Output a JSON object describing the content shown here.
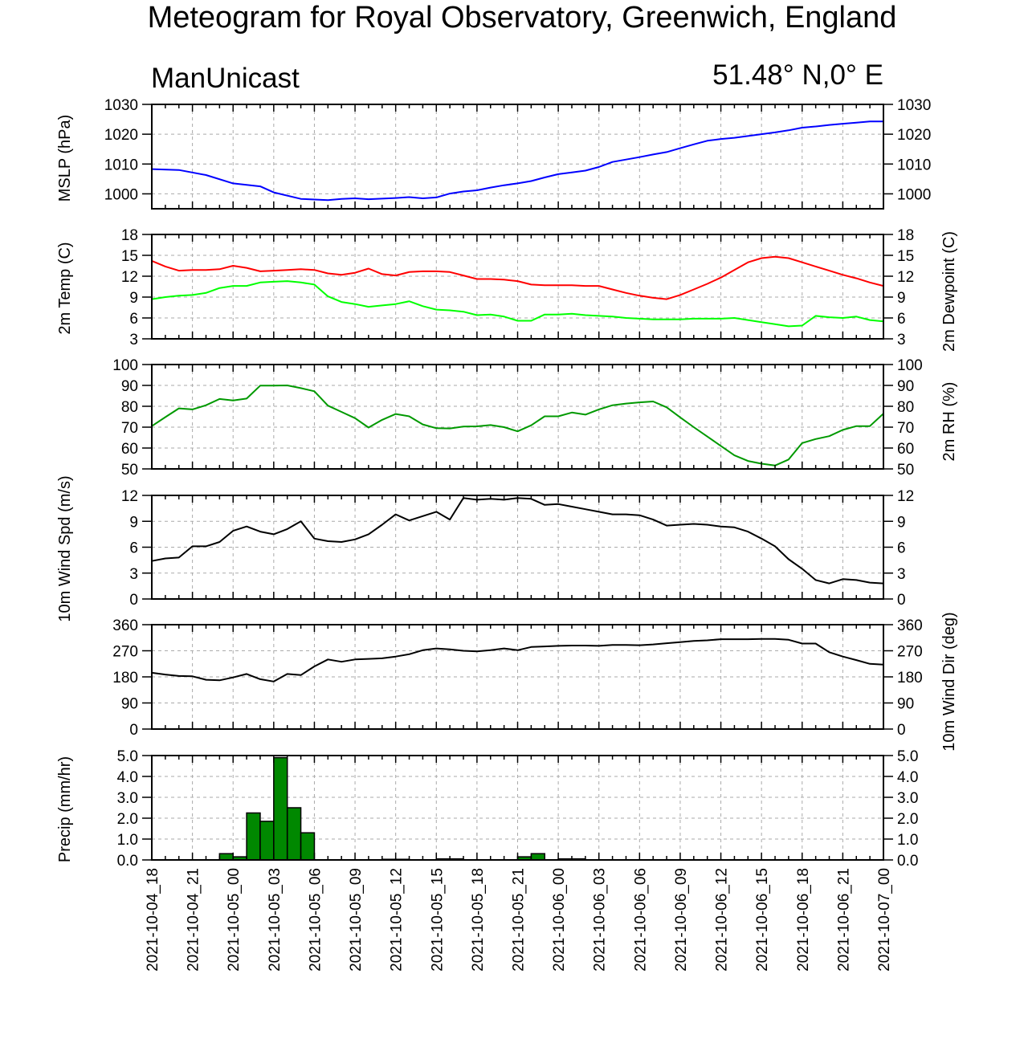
{
  "title": "Meteogram for Royal Observatory, Greenwich, England",
  "model": "ManUnicast",
  "location": "51.48° N,0° E",
  "time_labels": [
    "2021-10-04_18",
    "2021-10-04_21",
    "2021-10-05_00",
    "2021-10-05_03",
    "2021-10-05_06",
    "2021-10-05_09",
    "2021-10-05_12",
    "2021-10-05_15",
    "2021-10-05_18",
    "2021-10-05_21",
    "2021-10-06_00",
    "2021-10-06_03",
    "2021-10-06_06",
    "2021-10-06_09",
    "2021-10-06_12",
    "2021-10-06_15",
    "2021-10-06_18",
    "2021-10-06_21",
    "2021-10-07_00"
  ],
  "chart_data": [
    {
      "type": "line",
      "ylabel": "MSLP (hPa)",
      "ylim": [
        995,
        1030
      ],
      "yticks": [
        1000,
        1010,
        1020,
        1030
      ],
      "grid": true,
      "x_hours": [
        0,
        2,
        4,
        6,
        8,
        9,
        11,
        13,
        14,
        15,
        16,
        17,
        18,
        19,
        20,
        21,
        22,
        23,
        24,
        25,
        26,
        27,
        28,
        29,
        30,
        31,
        32,
        33,
        34,
        35,
        36,
        37,
        38,
        39,
        40,
        41,
        42,
        43,
        44,
        45,
        46,
        47,
        48,
        49,
        50,
        51,
        52,
        53,
        54
      ],
      "series": [
        {
          "color": "#0000ff",
          "values": [
            1008.3,
            1008,
            1006.3,
            1003.5,
            1002.5,
            1000.5,
            998.3,
            997.9,
            998.3,
            998.5,
            998.2,
            998.4,
            998.6,
            998.9,
            998.5,
            998.8,
            1000.1,
            1000.8,
            1001.2,
            1002.1,
            1002.9,
            1003.5,
            1004.3,
            1005.5,
            1006.6,
            1007.2,
            1007.8,
            1009,
            1010.7,
            1011.5,
            1012.3,
            1013.2,
            1014,
            1015.3,
            1016.6,
            1017.8,
            1018.4,
            1018.8,
            1019.4,
            1020,
            1020.6,
            1021.3,
            1022.2,
            1022.6,
            1023.1,
            1023.5,
            1023.9,
            1024.3,
            1024.3
          ]
        }
      ]
    },
    {
      "type": "line",
      "ylabel": "2m Temp (C)",
      "ylabel_right": "2m Dewpoint (C)",
      "ylim": [
        3,
        18
      ],
      "yticks": [
        3,
        6,
        9,
        12,
        15,
        18
      ],
      "grid": true,
      "x_hours": [
        0,
        1,
        2,
        3,
        4,
        5,
        6,
        7,
        8,
        9,
        10,
        11,
        12,
        13,
        14,
        15,
        16,
        17,
        18,
        19,
        20,
        21,
        22,
        23,
        24,
        25,
        26,
        27,
        28,
        29,
        30,
        31,
        32,
        33,
        34,
        35,
        36,
        37,
        38,
        39,
        40,
        41,
        42,
        43,
        44,
        45,
        46,
        47,
        48,
        49,
        50,
        51,
        52,
        53,
        54
      ],
      "series": [
        {
          "color": "#ff0000",
          "values": [
            14.2,
            13.4,
            12.8,
            12.9,
            12.9,
            13,
            13.5,
            13.2,
            12.7,
            12.8,
            12.9,
            13,
            12.9,
            12.4,
            12.2,
            12.5,
            13.1,
            12.3,
            12.1,
            12.6,
            12.7,
            12.7,
            12.6,
            12.1,
            11.6,
            11.6,
            11.5,
            11.3,
            10.8,
            10.7,
            10.7,
            10.7,
            10.6,
            10.6,
            10.1,
            9.6,
            9.2,
            8.9,
            8.7,
            9.3,
            10.1,
            10.9,
            11.8,
            12.9,
            14,
            14.6,
            14.8,
            14.6,
            14,
            13.4,
            12.8,
            12.2,
            11.7,
            11.1,
            10.6
          ]
        },
        {
          "color": "#00ff00",
          "values": [
            8.7,
            9,
            9.2,
            9.3,
            9.6,
            10.3,
            10.6,
            10.6,
            11.1,
            11.2,
            11.3,
            11.1,
            10.8,
            9.1,
            8.3,
            8,
            7.6,
            7.8,
            8,
            8.4,
            7.7,
            7.2,
            7.1,
            6.9,
            6.4,
            6.5,
            6.2,
            5.6,
            5.6,
            6.5,
            6.5,
            6.6,
            6.4,
            6.3,
            6.2,
            6,
            5.9,
            5.8,
            5.8,
            5.8,
            5.9,
            5.9,
            5.9,
            6,
            5.7,
            5.4,
            5.1,
            4.8,
            4.9,
            6.3,
            6.1,
            6,
            6.2,
            5.7,
            5.5
          ]
        }
      ]
    },
    {
      "type": "line",
      "ylabel_right": "2m RH (%)",
      "ylim": [
        50,
        100
      ],
      "yticks": [
        50,
        60,
        70,
        80,
        90,
        100
      ],
      "grid": true,
      "x_hours": [
        0,
        1,
        2,
        3,
        4,
        5,
        6,
        7,
        8,
        9,
        10,
        11,
        12,
        13,
        14,
        15,
        16,
        17,
        18,
        19,
        20,
        21,
        22,
        23,
        24,
        25,
        26,
        27,
        28,
        29,
        30,
        31,
        32,
        33,
        34,
        35,
        36,
        37,
        38,
        39,
        40,
        41,
        42,
        43,
        44,
        45,
        46,
        47,
        48,
        49,
        50,
        51,
        52,
        53,
        54
      ],
      "series": [
        {
          "color": "#009900",
          "values": [
            70.5,
            74.8,
            79,
            78.5,
            80.5,
            83.5,
            82.8,
            83.7,
            89.9,
            89.9,
            90,
            88.7,
            87.2,
            80.3,
            77.3,
            74.3,
            69.8,
            73.5,
            76.3,
            75.2,
            71.3,
            69.5,
            69.4,
            70.3,
            70.4,
            71,
            70,
            68,
            70.9,
            75.2,
            75.2,
            77,
            76,
            78.5,
            80.5,
            81.3,
            81.9,
            82.3,
            79.5,
            74.7,
            70,
            65.5,
            61,
            56.5,
            53.8,
            52.5,
            51.6,
            54.5,
            62.4,
            64.3,
            65.7,
            68.7,
            70.5,
            70.5,
            76.5
          ]
        }
      ]
    },
    {
      "type": "line",
      "ylabel": "10m Wind Spd (m/s)",
      "ylim": [
        0,
        12
      ],
      "yticks": [
        0,
        3,
        6,
        9,
        12
      ],
      "grid": true,
      "x_hours": [
        0,
        1,
        2,
        3,
        4,
        5,
        6,
        7,
        8,
        9,
        10,
        11,
        12,
        13,
        14,
        15,
        16,
        17,
        18,
        19,
        20,
        21,
        22,
        23,
        24,
        25,
        26,
        27,
        28,
        29,
        30,
        31,
        32,
        33,
        34,
        35,
        36,
        37,
        38,
        39,
        40,
        41,
        42,
        43,
        44,
        45,
        46,
        47,
        48,
        49,
        50,
        51,
        52,
        53,
        54
      ],
      "series": [
        {
          "color": "#000000",
          "values": [
            4.4,
            4.7,
            4.8,
            6.1,
            6.1,
            6.6,
            7.9,
            8.4,
            7.8,
            7.5,
            8.1,
            9,
            7,
            6.7,
            6.6,
            6.9,
            7.5,
            8.6,
            9.8,
            9.1,
            9.6,
            10.1,
            9.2,
            11.7,
            11.5,
            11.6,
            11.5,
            11.7,
            11.6,
            10.9,
            11,
            10.7,
            10.4,
            10.1,
            9.8,
            9.8,
            9.7,
            9.2,
            8.5,
            8.6,
            8.7,
            8.6,
            8.4,
            8.3,
            7.8,
            7,
            6.1,
            4.6,
            3.5,
            2.2,
            1.8,
            2.3,
            2.2,
            1.9,
            1.8
          ]
        }
      ]
    },
    {
      "type": "line",
      "ylabel_right": "10m Wind Dir (deg)",
      "ylim": [
        0,
        360
      ],
      "yticks": [
        0,
        90,
        180,
        270,
        360
      ],
      "grid": true,
      "x_hours": [
        0,
        1,
        2,
        3,
        4,
        5,
        6,
        7,
        8,
        9,
        10,
        11,
        12,
        13,
        14,
        15,
        16,
        17,
        18,
        19,
        20,
        21,
        22,
        23,
        24,
        25,
        26,
        27,
        28,
        29,
        30,
        31,
        32,
        33,
        34,
        35,
        36,
        37,
        38,
        39,
        40,
        41,
        42,
        43,
        44,
        45,
        46,
        47,
        48,
        49,
        50,
        51,
        52,
        53,
        54
      ],
      "series": [
        {
          "color": "#000000",
          "values": [
            194,
            188,
            183,
            182,
            170,
            168,
            178,
            190,
            172,
            164,
            190,
            186,
            216,
            240,
            232,
            240,
            242,
            244,
            250,
            258,
            272,
            278,
            275,
            270,
            268,
            272,
            278,
            272,
            283,
            285,
            287,
            288,
            288,
            287,
            290,
            290,
            289,
            292,
            296,
            300,
            304,
            306,
            310,
            310,
            310,
            311,
            311,
            308,
            295,
            295,
            265,
            250,
            238,
            225,
            222
          ]
        }
      ]
    },
    {
      "type": "bar",
      "ylabel": "Precip (mm/hr)",
      "ylim": [
        0,
        5
      ],
      "yticks": [
        "0.0",
        "1.0",
        "2.0",
        "3.0",
        "4.0",
        "5.0"
      ],
      "grid": true,
      "bar_color": "#008800",
      "x_hours": [
        5,
        6,
        7,
        8,
        9,
        10,
        11,
        17,
        18,
        21,
        22,
        27,
        28,
        30,
        31
      ],
      "values": [
        0.3,
        0.15,
        2.25,
        1.85,
        4.9,
        2.5,
        1.3,
        0.03,
        0.03,
        0.05,
        0.05,
        0.15,
        0.3,
        0.05,
        0.05
      ]
    }
  ]
}
